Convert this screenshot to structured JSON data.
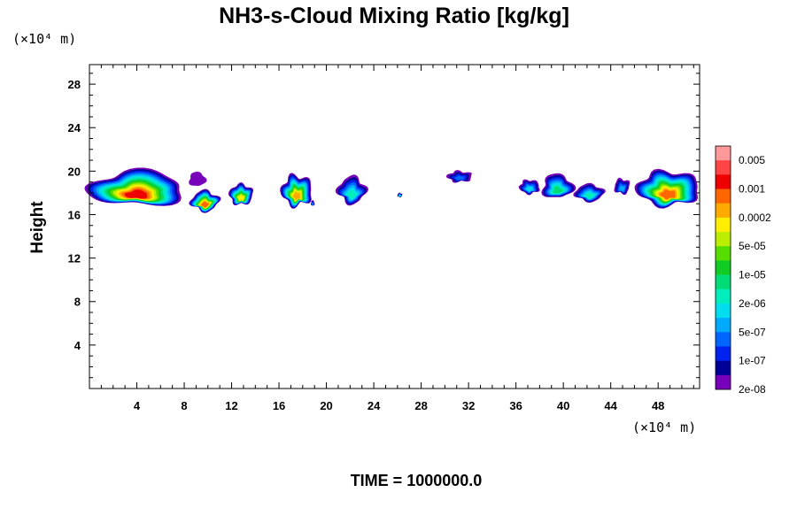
{
  "chart_data": {
    "type": "heatmap",
    "title": "NH3-s-Cloud Mixing Ratio [kg/kg]",
    "xlabel": "",
    "ylabel": "Height",
    "x_unit": "(×10⁴ m)",
    "y_unit": "(×10⁴ m)",
    "xlim": [
      0,
      51.5
    ],
    "ylim": [
      0,
      29.8
    ],
    "x_ticks": [
      4,
      8,
      12,
      16,
      20,
      24,
      28,
      32,
      36,
      40,
      44,
      48
    ],
    "y_ticks": [
      4,
      8,
      12,
      16,
      20,
      24,
      28
    ],
    "colorbar": {
      "labels": [
        "0.005",
        "0.001",
        "0.0002",
        "5e-05",
        "1e-05",
        "2e-06",
        "5e-07",
        "1e-07",
        "2e-08"
      ],
      "colors": [
        "#ff9999",
        "#ff4444",
        "#ee0000",
        "#ff6600",
        "#ffaa00",
        "#ffee00",
        "#bbee00",
        "#55dd00",
        "#11cc22",
        "#00dd77",
        "#00eebb",
        "#00ddee",
        "#00aaff",
        "#0066ff",
        "#0022ee",
        "#000099",
        "#7700bb"
      ]
    },
    "clouds": [
      {
        "x0": 0.0,
        "x1": 8.0,
        "y0": 16.8,
        "y1": 20.0,
        "core": 2
      },
      {
        "x0": 8.4,
        "x1": 9.8,
        "y0": 18.6,
        "y1": 19.9,
        "core": 16
      },
      {
        "x0": 8.6,
        "x1": 10.9,
        "y0": 16.3,
        "y1": 18.2,
        "core": 3
      },
      {
        "x0": 11.8,
        "x1": 13.8,
        "y0": 16.9,
        "y1": 18.8,
        "core": 5
      },
      {
        "x0": 16.2,
        "x1": 18.8,
        "y0": 16.8,
        "y1": 19.6,
        "core": 4
      },
      {
        "x0": 18.7,
        "x1": 19.0,
        "y0": 16.8,
        "y1": 17.3,
        "core": 12
      },
      {
        "x0": 21.0,
        "x1": 23.3,
        "y0": 17.0,
        "y1": 19.5,
        "core": 10
      },
      {
        "x0": 26.0,
        "x1": 26.4,
        "y0": 17.6,
        "y1": 18.0,
        "core": 10
      },
      {
        "x0": 30.2,
        "x1": 32.3,
        "y0": 19.0,
        "y1": 20.0,
        "core": 13
      },
      {
        "x0": 36.3,
        "x1": 38.0,
        "y0": 17.9,
        "y1": 19.2,
        "core": 11
      },
      {
        "x0": 38.2,
        "x1": 40.8,
        "y0": 17.5,
        "y1": 19.7,
        "core": 9
      },
      {
        "x0": 41.0,
        "x1": 43.4,
        "y0": 17.2,
        "y1": 18.8,
        "core": 10
      },
      {
        "x0": 44.3,
        "x1": 45.6,
        "y0": 17.9,
        "y1": 19.3,
        "core": 12
      },
      {
        "x0": 46.2,
        "x1": 51.5,
        "y0": 16.8,
        "y1": 20.0,
        "core": 3
      }
    ]
  },
  "footer": {
    "time_text": "TIME = 1000000.0"
  }
}
